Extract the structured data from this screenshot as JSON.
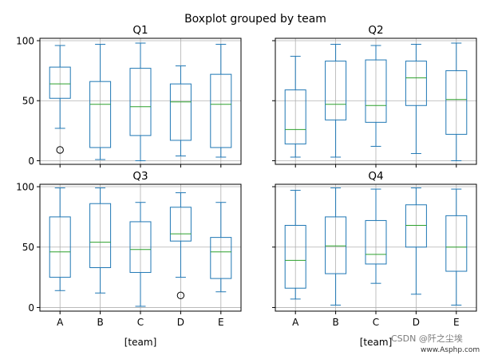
{
  "suptitle": "Boxplot grouped by team",
  "watermark": "CSDN @阡之尘埃",
  "watermark_url": "www.Asphp.com",
  "colors": {
    "box": "#1f77b4",
    "median": "#2ca02c",
    "grid": "#b0b0b0",
    "axis": "#000000"
  },
  "chart_data": [
    {
      "type": "boxplot",
      "title": "Q1",
      "xlabel": "",
      "categories": [
        "A",
        "B",
        "C",
        "D",
        "E"
      ],
      "ylim": [
        -3,
        102
      ],
      "yticks": [
        0,
        50,
        100
      ],
      "grid": true,
      "boxes": [
        {
          "whislo": 27,
          "q1": 52,
          "med": 64,
          "q3": 78,
          "whishi": 96,
          "fliers": [
            9
          ]
        },
        {
          "whislo": 1,
          "q1": 11,
          "med": 47,
          "q3": 66,
          "whishi": 97,
          "fliers": []
        },
        {
          "whislo": 0,
          "q1": 21,
          "med": 45,
          "q3": 77,
          "whishi": 98,
          "fliers": []
        },
        {
          "whislo": 4,
          "q1": 17,
          "med": 49,
          "q3": 64,
          "whishi": 79,
          "fliers": []
        },
        {
          "whislo": 3,
          "q1": 11,
          "med": 47,
          "q3": 72,
          "whishi": 97,
          "fliers": []
        }
      ]
    },
    {
      "type": "boxplot",
      "title": "Q2",
      "xlabel": "",
      "categories": [
        "A",
        "B",
        "C",
        "D",
        "E"
      ],
      "ylim": [
        -3,
        102
      ],
      "yticks": [
        0,
        50,
        100
      ],
      "grid": true,
      "boxes": [
        {
          "whislo": 3,
          "q1": 14,
          "med": 26,
          "q3": 59,
          "whishi": 87,
          "fliers": []
        },
        {
          "whislo": 3,
          "q1": 34,
          "med": 47,
          "q3": 83,
          "whishi": 97,
          "fliers": []
        },
        {
          "whislo": 12,
          "q1": 32,
          "med": 46,
          "q3": 84,
          "whishi": 96,
          "fliers": []
        },
        {
          "whislo": 6,
          "q1": 46,
          "med": 69,
          "q3": 83,
          "whishi": 97,
          "fliers": []
        },
        {
          "whislo": 0,
          "q1": 22,
          "med": 51,
          "q3": 75,
          "whishi": 98,
          "fliers": []
        }
      ]
    },
    {
      "type": "boxplot",
      "title": "Q3",
      "xlabel": "[team]",
      "categories": [
        "A",
        "B",
        "C",
        "D",
        "E"
      ],
      "ylim": [
        -3,
        102
      ],
      "yticks": [
        0,
        50,
        100
      ],
      "grid": true,
      "boxes": [
        {
          "whislo": 14,
          "q1": 25,
          "med": 46,
          "q3": 75,
          "whishi": 99,
          "fliers": []
        },
        {
          "whislo": 12,
          "q1": 33,
          "med": 54,
          "q3": 86,
          "whishi": 99,
          "fliers": []
        },
        {
          "whislo": 1,
          "q1": 29,
          "med": 48,
          "q3": 71,
          "whishi": 87,
          "fliers": []
        },
        {
          "whislo": 25,
          "q1": 55,
          "med": 61,
          "q3": 83,
          "whishi": 95,
          "fliers": [
            10
          ]
        },
        {
          "whislo": 13,
          "q1": 24,
          "med": 46,
          "q3": 58,
          "whishi": 87,
          "fliers": []
        }
      ]
    },
    {
      "type": "boxplot",
      "title": "Q4",
      "xlabel": "[team]",
      "categories": [
        "A",
        "B",
        "C",
        "D",
        "E"
      ],
      "ylim": [
        -3,
        102
      ],
      "yticks": [
        0,
        50,
        100
      ],
      "grid": true,
      "boxes": [
        {
          "whislo": 7,
          "q1": 16,
          "med": 39,
          "q3": 68,
          "whishi": 97,
          "fliers": []
        },
        {
          "whislo": 2,
          "q1": 28,
          "med": 51,
          "q3": 75,
          "whishi": 99,
          "fliers": []
        },
        {
          "whislo": 20,
          "q1": 36,
          "med": 44,
          "q3": 72,
          "whishi": 98,
          "fliers": []
        },
        {
          "whislo": 11,
          "q1": 50,
          "med": 68,
          "q3": 85,
          "whishi": 99,
          "fliers": []
        },
        {
          "whislo": 2,
          "q1": 30,
          "med": 50,
          "q3": 76,
          "whishi": 98,
          "fliers": []
        }
      ]
    }
  ]
}
